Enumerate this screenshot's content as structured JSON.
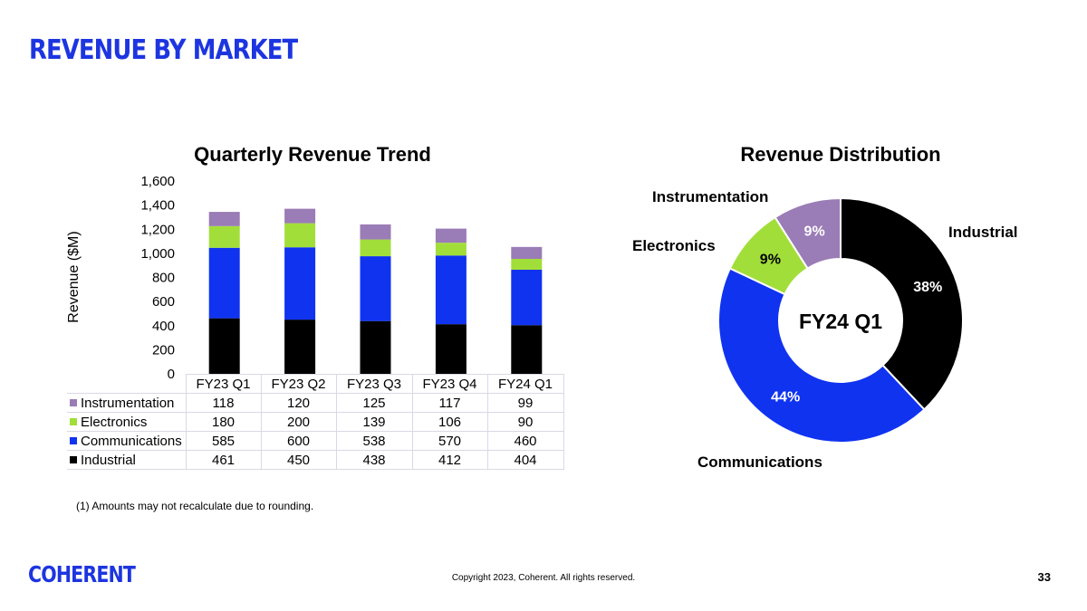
{
  "page": {
    "title": "REVENUE BY MARKET",
    "footnote": "(1)  Amounts may not recalculate due to rounding.",
    "logo_text": "COHERENT",
    "copyright": "Copyright 2023, Coherent. All rights reserved.",
    "page_number": "33"
  },
  "chart_data": [
    {
      "type": "bar",
      "stacked": true,
      "title": "Quarterly Revenue Trend",
      "ylabel": "Revenue ($M)",
      "ylim": [
        0,
        1600
      ],
      "yticks": [
        "0",
        "200",
        "400",
        "600",
        "800",
        "1,000",
        "1,200",
        "1,400",
        "1,600"
      ],
      "grid": false,
      "legend": "data-table",
      "categories": [
        "FY23 Q1",
        "FY23 Q2",
        "FY23 Q3",
        "FY23 Q4",
        "FY24 Q1"
      ],
      "series": [
        {
          "name": "Industrial",
          "values": [
            461,
            450,
            438,
            412,
            404
          ],
          "color": "#000000"
        },
        {
          "name": "Communications",
          "values": [
            585,
            600,
            538,
            570,
            460
          ],
          "color": "#1033f0"
        },
        {
          "name": "Electronics",
          "values": [
            180,
            200,
            139,
            106,
            90
          ],
          "color": "#a2de3a"
        },
        {
          "name": "Instrumentation",
          "values": [
            118,
            120,
            125,
            117,
            99
          ],
          "color": "#9a7cb6"
        }
      ]
    },
    {
      "type": "pie",
      "donut": true,
      "title": "Revenue Distribution",
      "center_label": "FY24 Q1",
      "slices": [
        {
          "name": "Industrial",
          "value": 38,
          "label": "38%",
          "color": "#000000",
          "text_color": "#ffffff"
        },
        {
          "name": "Communications",
          "value": 44,
          "label": "44%",
          "color": "#1033f0",
          "text_color": "#ffffff"
        },
        {
          "name": "Electronics",
          "value": 9,
          "label": "9%",
          "color": "#a2de3a",
          "text_color": "#000000"
        },
        {
          "name": "Instrumentation",
          "value": 9,
          "label": "9%",
          "color": "#9a7cb6",
          "text_color": "#ffffff"
        }
      ]
    }
  ]
}
